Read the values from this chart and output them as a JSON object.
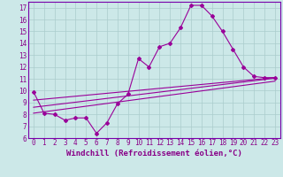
{
  "title": "",
  "xlabel": "Windchill (Refroidissement éolien,°C)",
  "xlim": [
    -0.5,
    23.5
  ],
  "ylim": [
    6,
    17.5
  ],
  "xticks": [
    0,
    1,
    2,
    3,
    4,
    5,
    6,
    7,
    8,
    9,
    10,
    11,
    12,
    13,
    14,
    15,
    16,
    17,
    18,
    19,
    20,
    21,
    22,
    23
  ],
  "yticks": [
    6,
    7,
    8,
    9,
    10,
    11,
    12,
    13,
    14,
    15,
    16,
    17
  ],
  "bg_color": "#cce8e8",
  "line_color": "#990099",
  "grid_color": "#aacccc",
  "spine_color": "#7700aa",
  "line1_x": [
    0,
    1,
    2,
    3,
    4,
    5,
    6,
    7,
    8,
    9,
    10,
    11,
    12,
    13,
    14,
    15,
    16,
    17,
    18,
    19,
    20,
    21,
    22,
    23
  ],
  "line1_y": [
    9.9,
    8.1,
    8.0,
    7.5,
    7.7,
    7.7,
    6.4,
    7.3,
    8.9,
    9.7,
    12.7,
    12.0,
    13.7,
    14.0,
    15.3,
    17.2,
    17.2,
    16.3,
    15.0,
    13.5,
    12.0,
    11.2,
    11.1,
    11.1
  ],
  "line2_x": [
    0,
    23
  ],
  "line2_y": [
    9.2,
    11.1
  ],
  "line3_x": [
    0,
    23
  ],
  "line3_y": [
    8.6,
    11.05
  ],
  "line4_x": [
    0,
    23
  ],
  "line4_y": [
    8.1,
    10.8
  ],
  "marker": "D",
  "markersize": 2.0,
  "linewidth": 0.8,
  "tick_fontsize": 5.5,
  "xlabel_fontsize": 6.5,
  "label_color": "#880088"
}
